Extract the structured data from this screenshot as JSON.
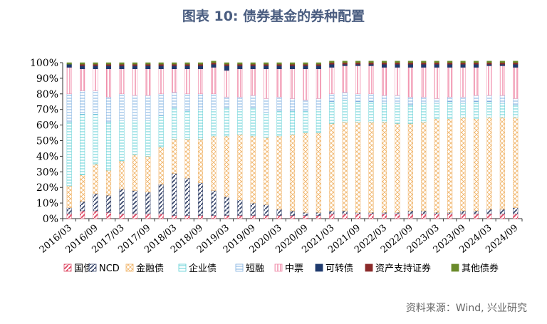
{
  "chart_data": {
    "type": "bar",
    "stacked": true,
    "title": "图表 10: 债券基金的券种配置",
    "source": "资料来源：Wind, 兴业研究",
    "xlabel": "",
    "ylabel": "",
    "ylim": [
      0,
      100
    ],
    "yticks": [
      "0%",
      "10%",
      "20%",
      "30%",
      "40%",
      "50%",
      "60%",
      "70%",
      "80%",
      "90%",
      "100%"
    ],
    "xtick_labels": [
      "2016/03",
      "2016/09",
      "2017/03",
      "2017/09",
      "2018/03",
      "2018/09",
      "2019/03",
      "2019/09",
      "2020/03",
      "2020/09",
      "2021/03",
      "2021/09",
      "2022/03",
      "2022/09",
      "2023/03",
      "2023/09",
      "2024/03",
      "2024/09"
    ],
    "legend_position": "bottom",
    "categories": [
      "2016/03",
      "2016/06",
      "2016/09",
      "2016/12",
      "2017/03",
      "2017/06",
      "2017/09",
      "2017/12",
      "2018/03",
      "2018/06",
      "2018/09",
      "2018/12",
      "2019/03",
      "2019/06",
      "2019/09",
      "2019/12",
      "2020/03",
      "2020/06",
      "2020/09",
      "2020/12",
      "2021/03",
      "2021/06",
      "2021/09",
      "2021/12",
      "2022/03",
      "2022/06",
      "2022/09",
      "2022/12",
      "2023/03",
      "2023/06",
      "2023/09",
      "2023/12",
      "2024/03",
      "2024/06",
      "2024/09"
    ],
    "series": [
      {
        "name": "国债",
        "color": "#e0506a",
        "values": [
          3,
          5,
          5,
          4,
          3,
          3,
          3,
          3,
          2,
          2,
          2,
          2,
          2,
          2,
          2,
          2,
          2,
          2,
          2,
          2,
          3,
          3,
          3,
          3,
          3,
          3,
          3,
          3,
          3,
          3,
          3,
          3,
          3,
          3,
          3
        ]
      },
      {
        "name": "NCD",
        "color": "#3c4a6e",
        "values": [
          4,
          6,
          11,
          11,
          16,
          15,
          14,
          19,
          27,
          24,
          21,
          16,
          12,
          10,
          8,
          7,
          4,
          3,
          2,
          2,
          2,
          2,
          1,
          1,
          1,
          1,
          2,
          2,
          1,
          1,
          2,
          2,
          3,
          3,
          4
        ]
      },
      {
        "name": "金融债",
        "color": "#f0b469",
        "values": [
          14,
          17,
          19,
          16,
          18,
          23,
          23,
          24,
          22,
          25,
          28,
          35,
          39,
          42,
          43,
          43,
          47,
          49,
          51,
          51,
          56,
          57,
          58,
          58,
          58,
          57,
          56,
          57,
          60,
          60,
          60,
          59,
          59,
          59,
          58
        ]
      },
      {
        "name": "企业债",
        "color": "#5fcfd5",
        "values": [
          41,
          39,
          32,
          31,
          26,
          22,
          23,
          20,
          20,
          18,
          19,
          17,
          18,
          16,
          18,
          16,
          16,
          15,
          14,
          15,
          14,
          14,
          13,
          13,
          12,
          13,
          12,
          12,
          10,
          11,
          9,
          11,
          10,
          9,
          8
        ]
      },
      {
        "name": "短融",
        "color": "#7fb0e0",
        "values": [
          18,
          15,
          15,
          16,
          17,
          16,
          16,
          14,
          10,
          11,
          10,
          10,
          7,
          8,
          8,
          9,
          9,
          8,
          7,
          7,
          5,
          5,
          5,
          5,
          5,
          5,
          5,
          4,
          3,
          3,
          4,
          4,
          4,
          5,
          4
        ]
      },
      {
        "name": "中票",
        "color": "#f08aa8",
        "values": [
          17,
          14,
          14,
          18,
          16,
          17,
          17,
          16,
          15,
          16,
          16,
          17,
          17,
          18,
          17,
          19,
          18,
          19,
          20,
          19,
          17,
          17,
          18,
          18,
          18,
          18,
          19,
          19,
          20,
          19,
          19,
          18,
          19,
          19,
          20
        ]
      },
      {
        "name": "可转债",
        "color": "#1f3a6e",
        "values": [
          2,
          2,
          2,
          2,
          2,
          2,
          2,
          2,
          2,
          2,
          2,
          2,
          3,
          2,
          2,
          2,
          2,
          2,
          2,
          2,
          2,
          1,
          1,
          1,
          2,
          2,
          2,
          2,
          2,
          2,
          2,
          2,
          1,
          1,
          2
        ]
      },
      {
        "name": "资产支持证券",
        "color": "#8b2a2a",
        "values": [
          0,
          1,
          1,
          1,
          1,
          1,
          1,
          1,
          1,
          1,
          1,
          1,
          1,
          1,
          1,
          1,
          1,
          1,
          1,
          1,
          1,
          1,
          1,
          1,
          1,
          1,
          1,
          1,
          1,
          1,
          1,
          1,
          1,
          1,
          1
        ]
      },
      {
        "name": "其他债券",
        "color": "#6a8a2a",
        "values": [
          1,
          1,
          1,
          1,
          1,
          1,
          1,
          1,
          1,
          1,
          1,
          1,
          1,
          1,
          1,
          1,
          1,
          1,
          1,
          1,
          1,
          1,
          1,
          1,
          1,
          1,
          1,
          1,
          1,
          1,
          1,
          1,
          1,
          1,
          1
        ]
      }
    ]
  }
}
